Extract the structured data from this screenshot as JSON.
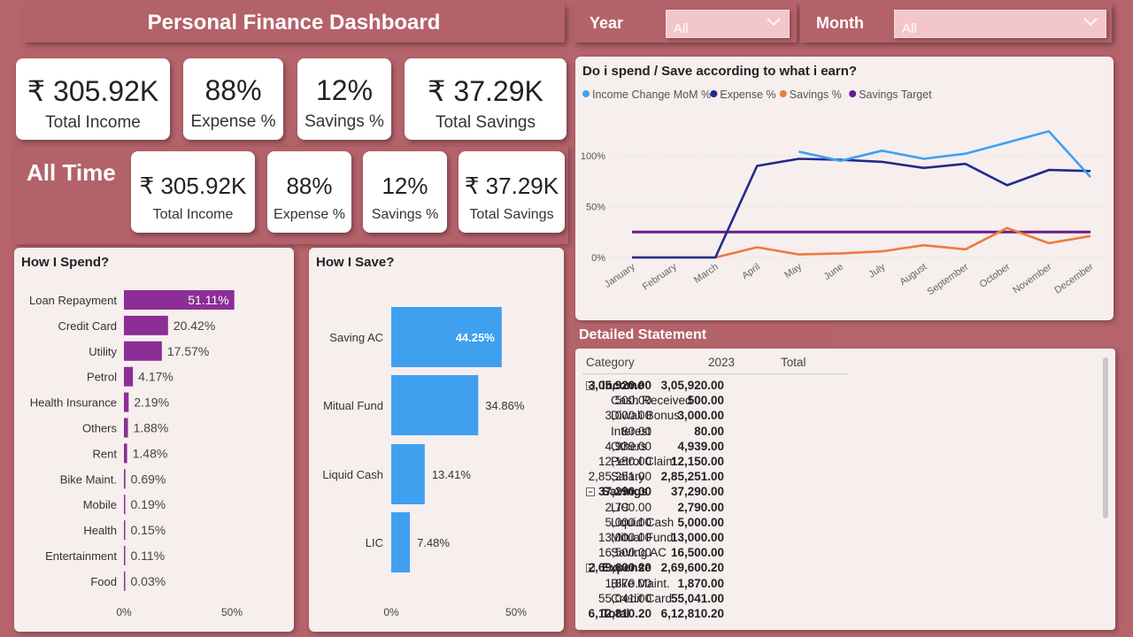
{
  "header": {
    "title": "Personal Finance Dashboard"
  },
  "filters": {
    "year": {
      "label": "Year",
      "value": "All"
    },
    "month": {
      "label": "Month",
      "value": "All"
    }
  },
  "kpi_top": [
    {
      "value": "₹ 305.92K",
      "label": "Total Income"
    },
    {
      "value": "88%",
      "label": "Expense %"
    },
    {
      "value": "12%",
      "label": "Savings %"
    },
    {
      "value": "₹ 37.29K",
      "label": "Total Savings"
    }
  ],
  "all_time": {
    "heading": "All Time",
    "kpis": [
      {
        "value": "₹ 305.92K",
        "label": "Total Income"
      },
      {
        "value": "88%",
        "label": "Expense %"
      },
      {
        "value": "12%",
        "label": "Savings %"
      },
      {
        "value": "₹ 37.29K",
        "label": "Total Savings"
      }
    ]
  },
  "spend_panel": {
    "title": "How I Spend?"
  },
  "save_panel": {
    "title": "How I Save?"
  },
  "trend_panel": {
    "title": "Do i spend / Save according to what i earn?"
  },
  "statement": {
    "title": "Detailed Statement",
    "headers": [
      "Category",
      "2023",
      "Total"
    ],
    "rows": [
      {
        "type": "group",
        "expander": "⊟",
        "label": "Income",
        "y2023": "3,05,920.00",
        "total": "3,05,920.00"
      },
      {
        "type": "item",
        "label": "Cash Received",
        "y2023": "500.00",
        "total": "500.00"
      },
      {
        "type": "item",
        "label": "Diwali Bonus",
        "y2023": "3,000.00",
        "total": "3,000.00"
      },
      {
        "type": "item",
        "label": "Interest",
        "y2023": "80.00",
        "total": "80.00"
      },
      {
        "type": "item",
        "label": "Others",
        "y2023": "4,939.00",
        "total": "4,939.00"
      },
      {
        "type": "item",
        "label": "Petrol Claim",
        "y2023": "12,150.00",
        "total": "12,150.00"
      },
      {
        "type": "item",
        "label": "Salary",
        "y2023": "2,85,251.00",
        "total": "2,85,251.00"
      },
      {
        "type": "group",
        "expander": "⊟",
        "label": "Savings",
        "y2023": "37,290.00",
        "total": "37,290.00"
      },
      {
        "type": "item",
        "label": "LIC",
        "y2023": "2,790.00",
        "total": "2,790.00"
      },
      {
        "type": "item",
        "label": "Liquid Cash",
        "y2023": "5,000.00",
        "total": "5,000.00"
      },
      {
        "type": "item",
        "label": "Mitual Fund",
        "y2023": "13,000.00",
        "total": "13,000.00"
      },
      {
        "type": "item",
        "label": "Saving AC",
        "y2023": "16,500.00",
        "total": "16,500.00"
      },
      {
        "type": "group",
        "expander": "⊟",
        "label": "Expense",
        "y2023": "2,69,600.20",
        "total": "2,69,600.20"
      },
      {
        "type": "item",
        "label": "Bike Maint.",
        "y2023": "1,870.00",
        "total": "1,870.00"
      },
      {
        "type": "item",
        "label": "Credit Card",
        "y2023": "55,041.00",
        "total": "55,041.00"
      },
      {
        "type": "total",
        "label": "Total",
        "y2023": "6,12,810.20",
        "total": "6,12,810.20"
      }
    ]
  },
  "colors": {
    "background": "#b5646b",
    "spend_bar": "#8b2f96",
    "save_bar": "#3fa0f0",
    "income_line": "#3fa0f0",
    "expense_line": "#1f2a8c",
    "savings_line": "#ee7b3b",
    "target_line": "#6a1b8a"
  },
  "chart_data": [
    {
      "id": "spend",
      "type": "bar",
      "orientation": "horizontal",
      "title": "How I Spend?",
      "categories": [
        "Loan Repayment",
        "Credit Card",
        "Utility",
        "Petrol",
        "Health Insurance",
        "Others",
        "Rent",
        "Bike Maint.",
        "Mobile",
        "Health",
        "Entertainment",
        "Food"
      ],
      "values": [
        51.11,
        20.42,
        17.57,
        4.17,
        2.19,
        1.88,
        1.48,
        0.69,
        0.19,
        0.15,
        0.11,
        0.03
      ],
      "labels": [
        "51.11%",
        "20.42%",
        "17.57%",
        "4.17%",
        "2.19%",
        "1.88%",
        "1.48%",
        "0.69%",
        "0.19%",
        "0.15%",
        "0.11%",
        "0.03%"
      ],
      "xlim": [
        0,
        60
      ],
      "xticks": [
        "0%",
        "50%"
      ]
    },
    {
      "id": "save",
      "type": "bar",
      "orientation": "horizontal",
      "title": "How I Save?",
      "categories": [
        "Saving AC",
        "Mitual Fund",
        "Liquid Cash",
        "LIC"
      ],
      "values": [
        44.25,
        34.86,
        13.41,
        7.48
      ],
      "labels": [
        "44.25%",
        "34.86%",
        "13.41%",
        "7.48%"
      ],
      "xlim": [
        0,
        50
      ],
      "xticks": [
        "0%",
        "50%"
      ]
    },
    {
      "id": "trend",
      "type": "line",
      "title": "Do i spend / Save according to what i earn?",
      "categories": [
        "January",
        "February",
        "March",
        "April",
        "May",
        "June",
        "July",
        "August",
        "September",
        "October",
        "November",
        "December"
      ],
      "yticks": [
        "0%",
        "50%",
        "100%"
      ],
      "ylim": [
        0,
        130
      ],
      "legend_position": "top-left",
      "series": [
        {
          "name": "Income Change MoM %",
          "color": "#3fa0f0",
          "values": [
            null,
            null,
            null,
            null,
            104,
            95,
            105,
            97,
            102,
            113,
            124,
            79
          ]
        },
        {
          "name": "Expense %",
          "color": "#1f2a8c",
          "values": [
            0,
            0,
            0,
            90,
            97,
            96,
            94,
            88,
            92,
            71,
            86,
            85
          ]
        },
        {
          "name": "Savings %",
          "color": "#ee7b3b",
          "values": [
            0,
            0,
            0,
            10,
            3,
            4,
            6,
            12,
            8,
            29,
            14,
            21
          ]
        },
        {
          "name": "Savings Target",
          "color": "#6a1b8a",
          "values": [
            25,
            25,
            25,
            25,
            25,
            25,
            25,
            25,
            25,
            25,
            25,
            25
          ]
        }
      ]
    }
  ]
}
